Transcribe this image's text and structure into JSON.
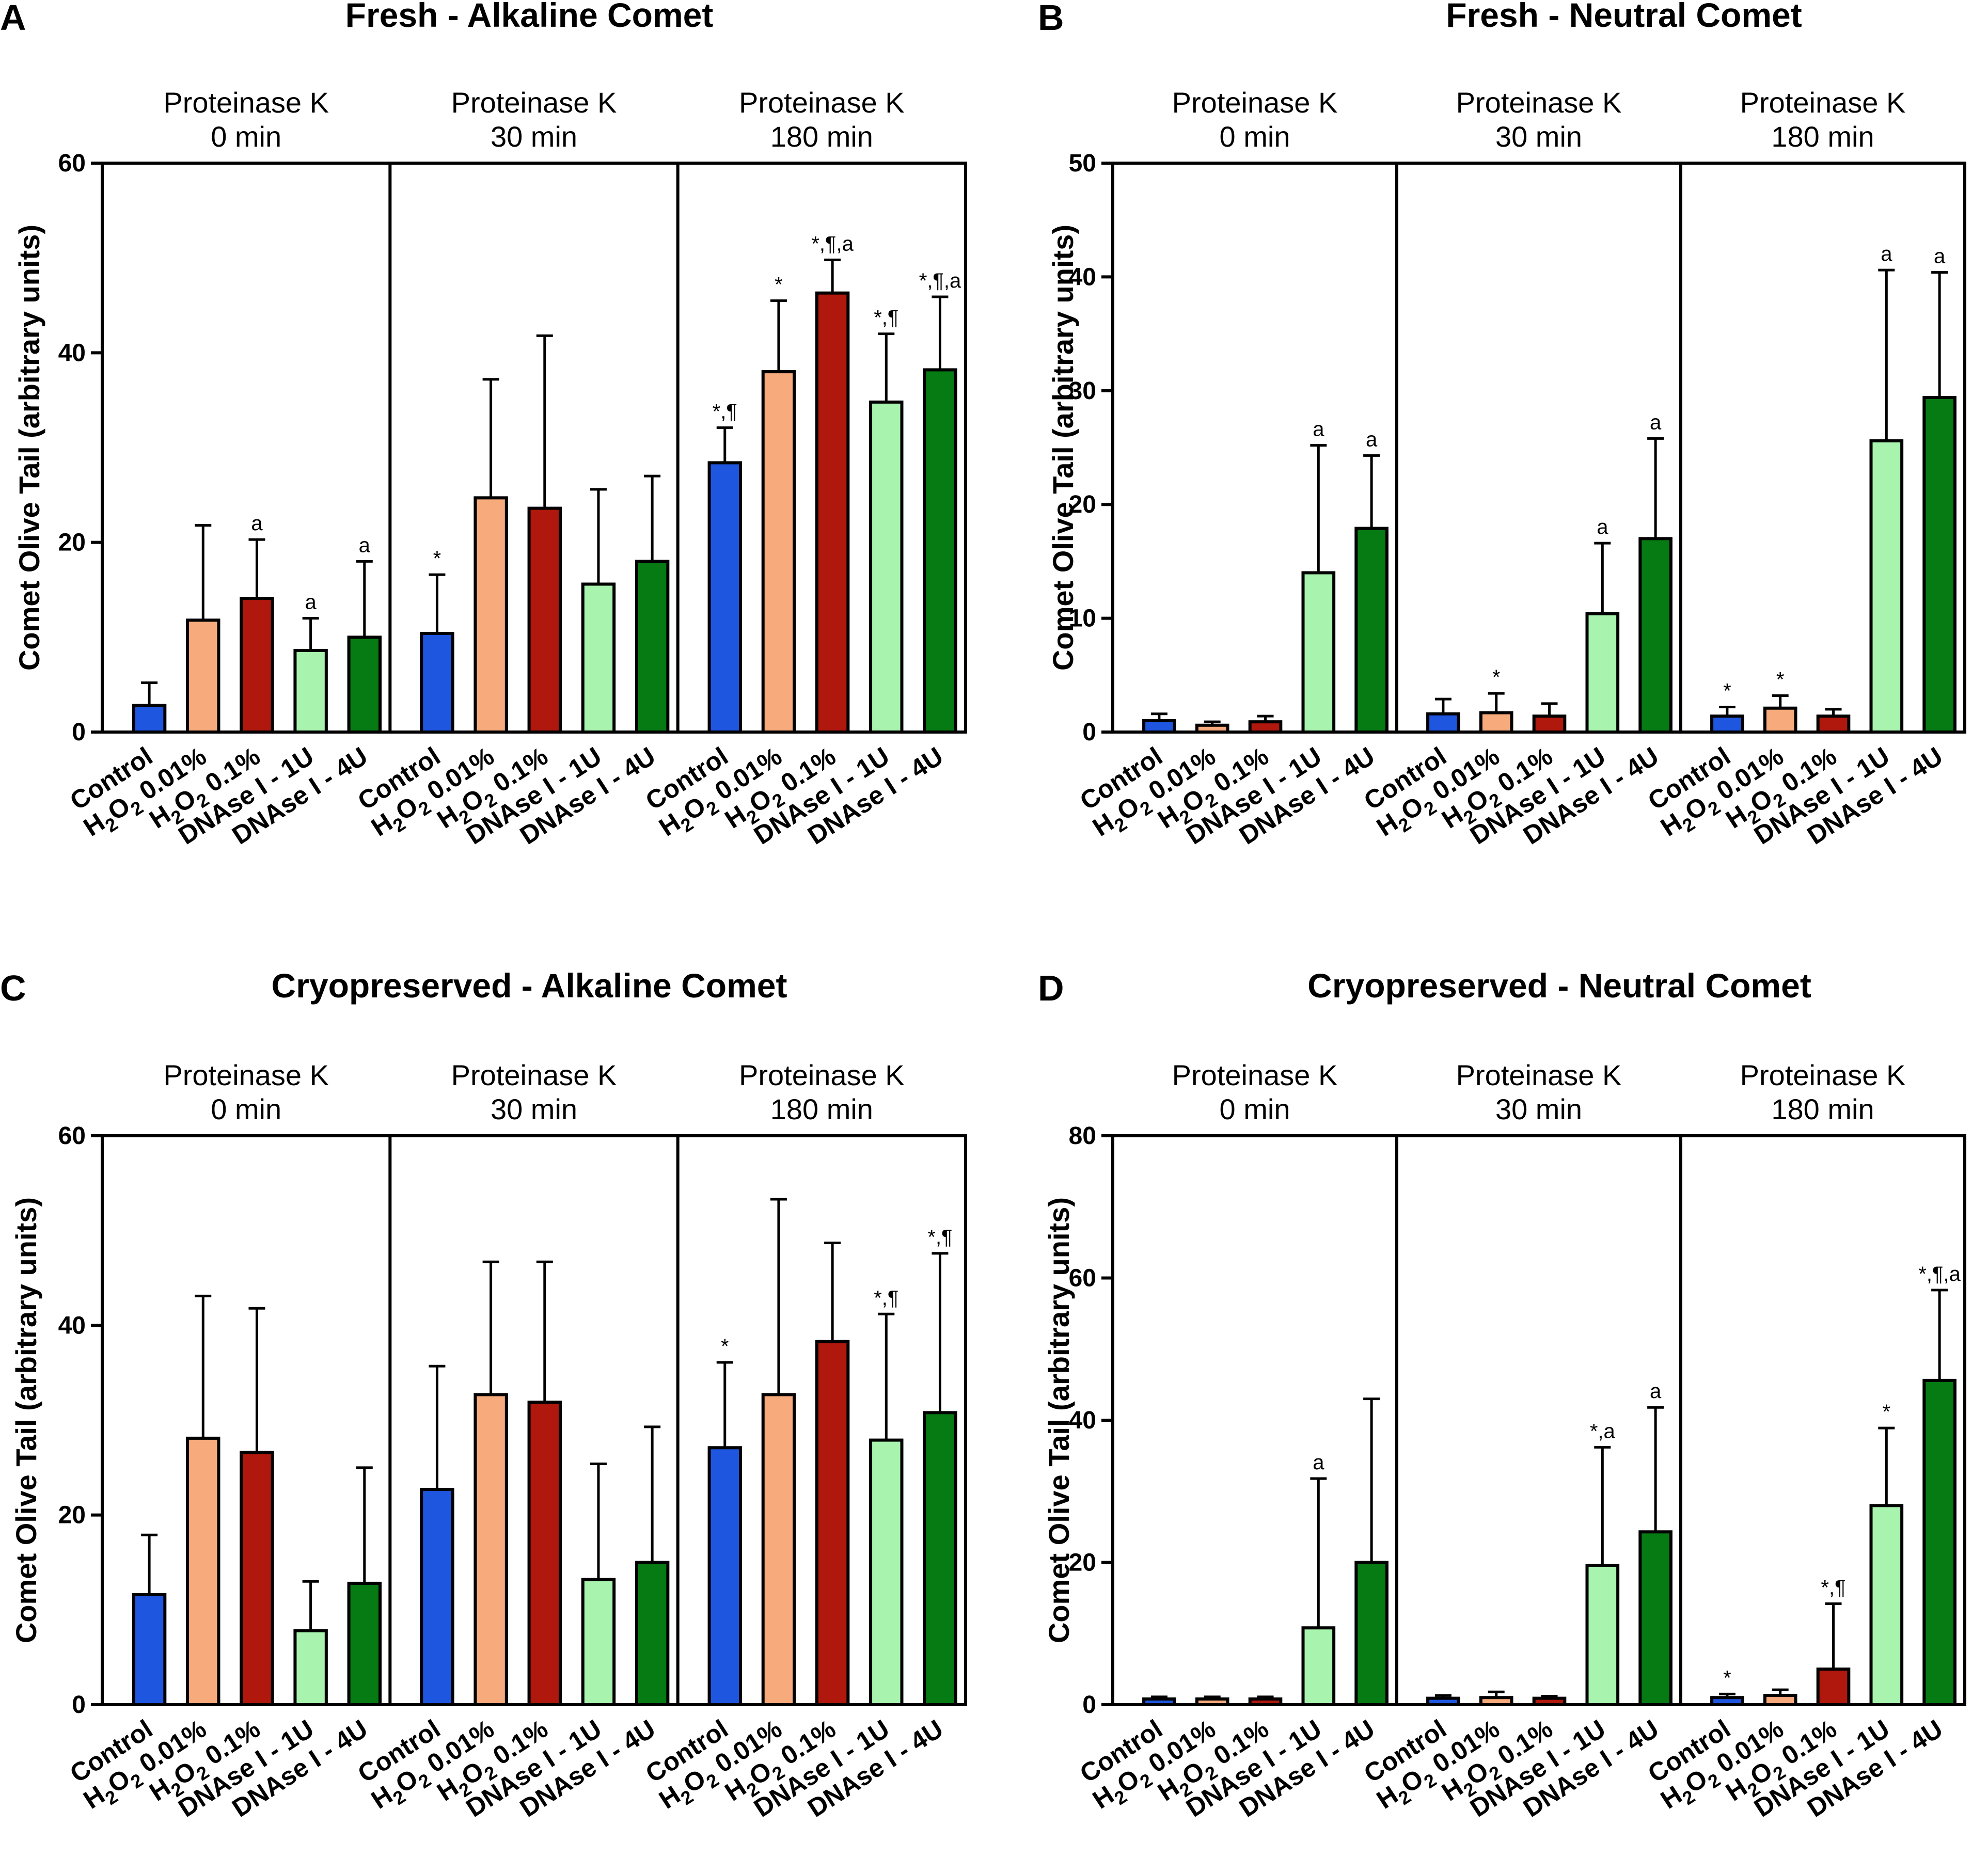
{
  "colors": {
    "Control": "#1f56e0",
    "H2O2 0.01%": "#f7aa7c",
    "H2O2 0.1%": "#b0170d",
    "DNAse I - 1U": "#a8f4ae",
    "DNAse I - 4U": "#067a13"
  },
  "chart_data": [
    {
      "type": "bar",
      "panel": "A",
      "title": "Fresh - Alkaline Comet",
      "ylabel": "Comet Olive Tail (arbitrary units)",
      "ylim": [
        0,
        60
      ],
      "yticks": [
        "0",
        "20",
        "40",
        "60"
      ],
      "categories": [
        "Control",
        "H2O2 0.01%",
        "H2O2 0.1%",
        "DNAse I - 1U",
        "DNAse I - 4U"
      ],
      "groups": [
        {
          "label_line1": "Proteinase K",
          "label_line2": "0 min",
          "values": [
            2.8,
            11.8,
            14.1,
            8.6,
            10.0
          ],
          "errors": [
            2.4,
            10.0,
            6.2,
            3.4,
            8.0
          ],
          "annotations": [
            "",
            "",
            "a",
            "a",
            "a"
          ]
        },
        {
          "label_line1": "Proteinase K",
          "label_line2": "30 min",
          "values": [
            10.4,
            24.7,
            23.6,
            15.6,
            18.0
          ],
          "errors": [
            6.2,
            12.5,
            18.2,
            10.0,
            9.0
          ],
          "annotations": [
            "*",
            "",
            "",
            "",
            ""
          ]
        },
        {
          "label_line1": "Proteinase K",
          "label_line2": "180 min",
          "values": [
            28.4,
            38.0,
            46.3,
            34.8,
            38.2
          ],
          "errors": [
            3.7,
            7.5,
            3.5,
            7.2,
            7.7
          ],
          "annotations": [
            "*,¶",
            "*",
            "*,¶,a",
            "*,¶",
            "*,¶,a"
          ]
        }
      ]
    },
    {
      "type": "bar",
      "panel": "B",
      "title": "Fresh - Neutral Comet",
      "ylabel": "Comet Olive Tail (arbitrary units)",
      "ylim": [
        0,
        50
      ],
      "yticks": [
        "0",
        "10",
        "20",
        "30",
        "40",
        "50"
      ],
      "categories": [
        "Control",
        "H2O2 0.01%",
        "H2O2 0.1%",
        "DNAse I - 1U",
        "DNAse I - 4U"
      ],
      "groups": [
        {
          "label_line1": "Proteinase K",
          "label_line2": "0 min",
          "values": [
            1.0,
            0.6,
            0.9,
            14.0,
            17.9
          ],
          "errors": [
            0.6,
            0.3,
            0.5,
            11.2,
            6.4
          ],
          "annotations": [
            "",
            "",
            "",
            "a",
            "a"
          ]
        },
        {
          "label_line1": "Proteinase K",
          "label_line2": "30 min",
          "values": [
            1.6,
            1.7,
            1.4,
            10.4,
            17.0
          ],
          "errors": [
            1.3,
            1.7,
            1.1,
            6.2,
            8.8
          ],
          "annotations": [
            "",
            "*",
            "",
            "a",
            "a"
          ]
        },
        {
          "label_line1": "Proteinase K",
          "label_line2": "180 min",
          "values": [
            1.4,
            2.1,
            1.4,
            25.6,
            29.4
          ],
          "errors": [
            0.8,
            1.1,
            0.6,
            15.0,
            11.0
          ],
          "annotations": [
            "*",
            "*",
            "",
            "a",
            "a"
          ]
        }
      ]
    },
    {
      "type": "bar",
      "panel": "C",
      "title": "Cryopreserved - Alkaline Comet",
      "ylabel": "Comet Olive Tail (arbitrary units)",
      "ylim": [
        0,
        60
      ],
      "yticks": [
        "0",
        "20",
        "40",
        "60"
      ],
      "categories": [
        "Control",
        "H2O2 0.01%",
        "H2O2 0.1%",
        "DNAse I - 1U",
        "DNAse I - 4U"
      ],
      "groups": [
        {
          "label_line1": "Proteinase K",
          "label_line2": "0 min",
          "values": [
            11.6,
            28.1,
            26.6,
            7.8,
            12.8
          ],
          "errors": [
            6.3,
            15.0,
            15.2,
            5.2,
            12.2
          ],
          "annotations": [
            "",
            "",
            "",
            "",
            ""
          ]
        },
        {
          "label_line1": "Proteinase K",
          "label_line2": "30 min",
          "values": [
            22.7,
            32.7,
            31.9,
            13.2,
            15.0
          ],
          "errors": [
            13.0,
            14.0,
            14.8,
            12.2,
            14.3
          ],
          "annotations": [
            "",
            "",
            "",
            "",
            ""
          ]
        },
        {
          "label_line1": "Proteinase K",
          "label_line2": "180 min",
          "values": [
            27.1,
            32.7,
            38.3,
            27.9,
            30.8
          ],
          "errors": [
            9.0,
            20.6,
            10.4,
            13.3,
            16.8
          ],
          "annotations": [
            "*",
            "",
            "",
            "*,¶",
            "*,¶"
          ]
        }
      ]
    },
    {
      "type": "bar",
      "panel": "D",
      "title": "Cryopreserved - Neutral Comet",
      "ylabel": "Comet Olive Tail (arbitrary units)",
      "ylim": [
        0,
        80
      ],
      "yticks": [
        "0",
        "20",
        "40",
        "60",
        "80"
      ],
      "categories": [
        "Control",
        "H2O2 0.01%",
        "H2O2 0.1%",
        "DNAse I - 1U",
        "DNAse I - 4U"
      ],
      "groups": [
        {
          "label_line1": "Proteinase K",
          "label_line2": "0 min",
          "values": [
            0.8,
            0.8,
            0.8,
            10.8,
            20.0
          ],
          "errors": [
            0.3,
            0.3,
            0.3,
            21.0,
            23.0
          ],
          "annotations": [
            "",
            "",
            "",
            "a",
            ""
          ]
        },
        {
          "label_line1": "Proteinase K",
          "label_line2": "30 min",
          "values": [
            0.9,
            1.0,
            0.9,
            19.6,
            24.3
          ],
          "errors": [
            0.4,
            0.8,
            0.3,
            16.6,
            17.5
          ],
          "annotations": [
            "",
            "",
            "",
            "*,a",
            "a"
          ]
        },
        {
          "label_line1": "Proteinase K",
          "label_line2": "180 min",
          "values": [
            1.0,
            1.3,
            5.0,
            28.0,
            45.6
          ],
          "errors": [
            0.5,
            0.8,
            9.2,
            10.9,
            12.7
          ],
          "annotations": [
            "*",
            "",
            "*,¶",
            "*",
            "*,¶,a"
          ]
        }
      ]
    }
  ]
}
